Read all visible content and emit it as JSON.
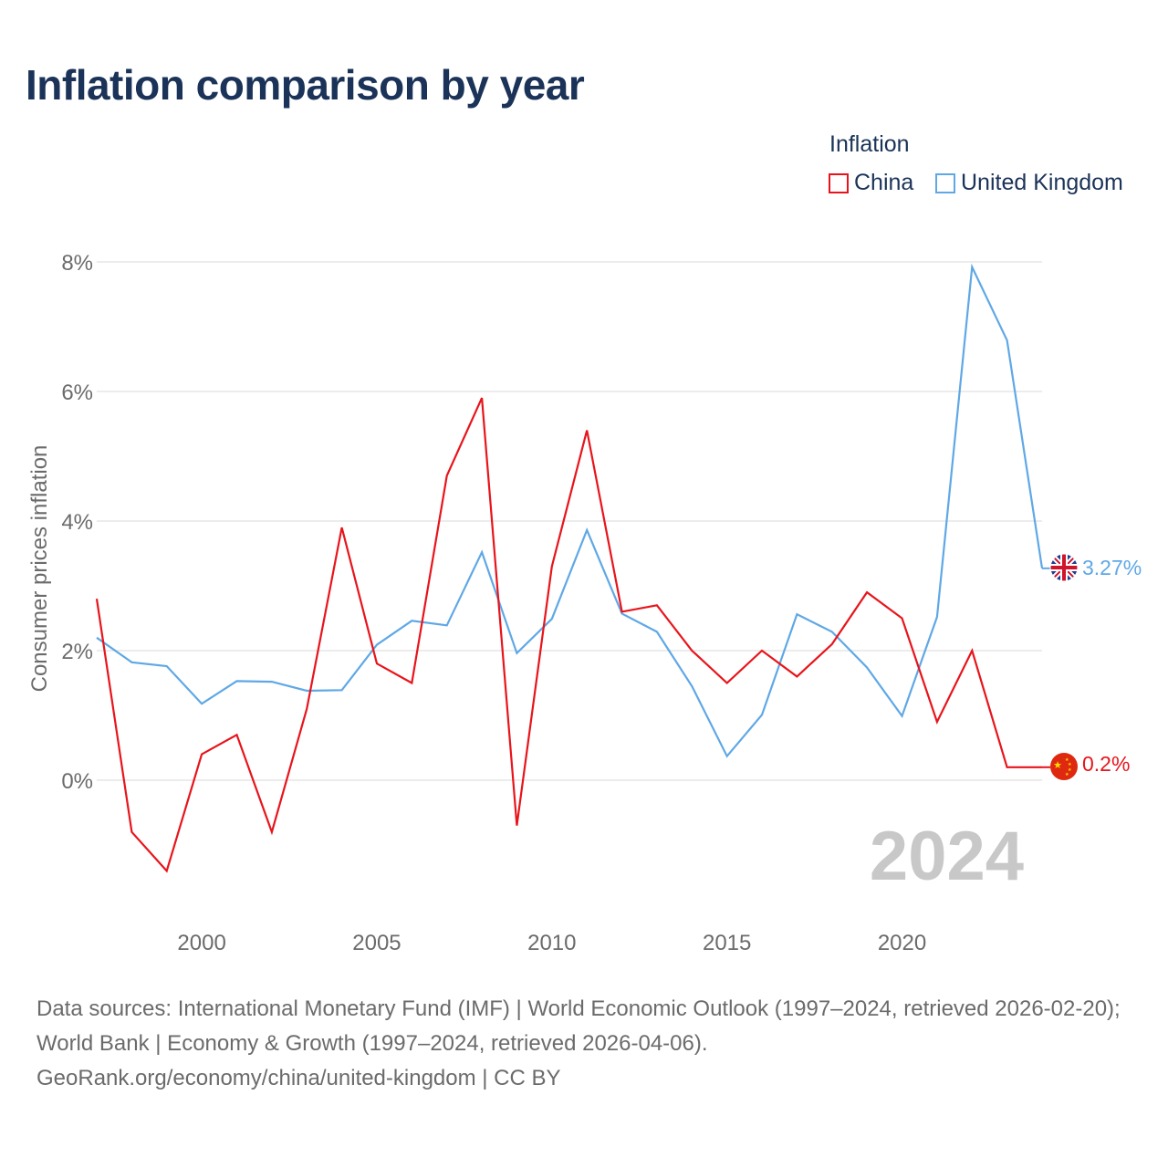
{
  "title": "Inflation comparison by year",
  "legend": {
    "title": "Inflation",
    "items": [
      {
        "label": "China",
        "color": "#e8141b"
      },
      {
        "label": "United Kingdom",
        "color": "#5fa8e6"
      }
    ]
  },
  "year_watermark": "2024",
  "sources": {
    "line1": "Data sources: International Monetary Fund (IMF) | World Economic Outlook (1997–2024, retrieved 2026-02-20); World Bank | Economy & Growth (1997–2024, retrieved 2026-04-06).",
    "line2": "GeoRank.org/economy/china/united-kingdom | CC BY"
  },
  "chart_data": {
    "type": "line",
    "title": "Inflation comparison by year",
    "xlabel": "",
    "ylabel": "Consumer prices inflation",
    "xlim": [
      1997,
      2024
    ],
    "ylim": [
      -2,
      8
    ],
    "x_ticks": [
      2000,
      2005,
      2010,
      2015,
      2020
    ],
    "y_ticks": [
      0,
      2,
      4,
      6,
      8
    ],
    "y_tick_labels": [
      "0%",
      "2%",
      "4%",
      "6%",
      "8%"
    ],
    "grid": true,
    "legend_position": "top-right",
    "x": [
      1997,
      1998,
      1999,
      2000,
      2001,
      2002,
      2003,
      2004,
      2005,
      2006,
      2007,
      2008,
      2009,
      2010,
      2011,
      2012,
      2013,
      2014,
      2015,
      2016,
      2017,
      2018,
      2019,
      2020,
      2021,
      2022,
      2023,
      2024
    ],
    "series": [
      {
        "name": "China",
        "color": "#e8141b",
        "end_label": "0.2%",
        "flag": "china-flag",
        "values": [
          2.8,
          -0.8,
          -1.4,
          0.4,
          0.7,
          -0.8,
          1.1,
          3.9,
          1.8,
          1.5,
          4.7,
          5.9,
          -0.7,
          3.3,
          5.4,
          2.6,
          2.7,
          2.0,
          1.5,
          2.0,
          1.6,
          2.1,
          2.9,
          2.5,
          0.9,
          2.0,
          0.2,
          0.2
        ]
      },
      {
        "name": "United Kingdom",
        "color": "#5fa8e6",
        "end_label": "3.27%",
        "flag": "uk-flag",
        "values": [
          2.2,
          1.82,
          1.76,
          1.18,
          1.53,
          1.52,
          1.38,
          1.39,
          2.09,
          2.46,
          2.39,
          3.52,
          1.96,
          2.49,
          3.86,
          2.57,
          2.29,
          1.45,
          0.37,
          1.01,
          2.56,
          2.29,
          1.74,
          0.99,
          2.52,
          7.92,
          6.79,
          3.27
        ]
      }
    ]
  }
}
